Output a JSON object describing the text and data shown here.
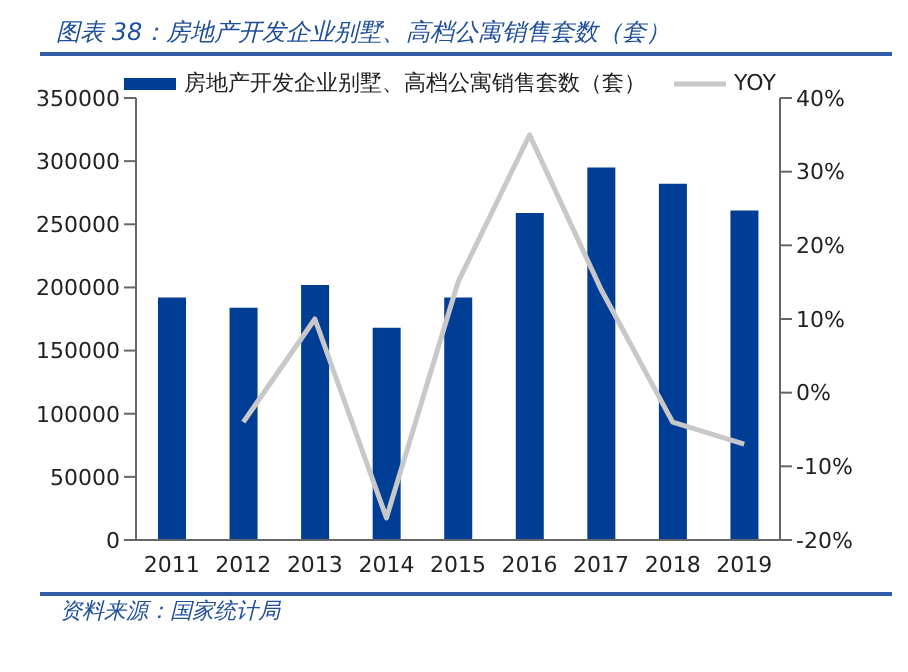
{
  "chart_data": {
    "type": "bar",
    "title": "图表 38：房地产开发企业别墅、高档公寓销售套数（套）",
    "categories": [
      "2011",
      "2012",
      "2013",
      "2014",
      "2015",
      "2016",
      "2017",
      "2018",
      "2019"
    ],
    "series": [
      {
        "name": "房地产开发企业别墅、高档公寓销售套数（套）",
        "color": "#003d94",
        "values": [
          192000,
          184000,
          202000,
          168000,
          192000,
          259000,
          295000,
          282000,
          261000
        ]
      },
      {
        "name": "YOY",
        "type": "line",
        "axis": "y2",
        "color": "#c8c8c8",
        "values": [
          null,
          -4,
          10,
          -17,
          15,
          35,
          14,
          -4,
          -7
        ]
      }
    ],
    "ylim": [
      0,
      350000
    ],
    "yticks": [
      0,
      50000,
      100000,
      150000,
      200000,
      250000,
      300000,
      350000
    ],
    "y2lim": [
      -20,
      40
    ],
    "y2ticks": [
      {
        "value": -20,
        "label": "-20%"
      },
      {
        "value": -10,
        "label": "-10%"
      },
      {
        "value": 0,
        "label": "0%"
      },
      {
        "value": 10,
        "label": "10%"
      },
      {
        "value": 20,
        "label": "20%"
      },
      {
        "value": 30,
        "label": "30%"
      },
      {
        "value": 40,
        "label": "40%"
      }
    ],
    "legend": "top",
    "grid": false,
    "marker": "none",
    "annotations": [
      "资料来源：国家统计局"
    ]
  }
}
